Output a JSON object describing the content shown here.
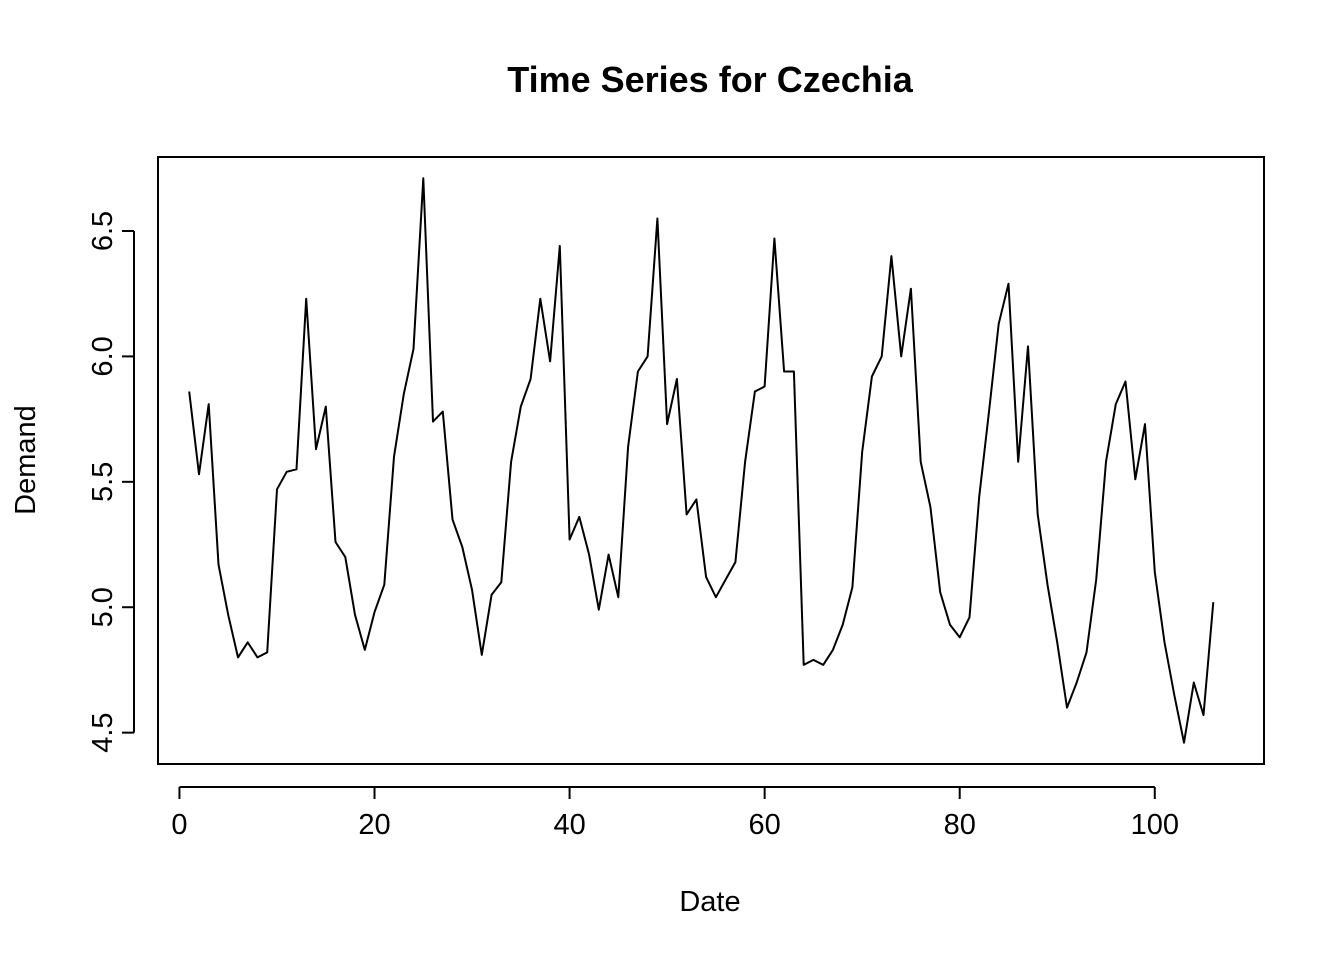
{
  "chart_data": {
    "type": "line",
    "title": "Time Series for Czechia",
    "xlabel": "Date",
    "ylabel": "Demand",
    "xlim": [
      -2.2,
      111.2
    ],
    "ylim": [
      4.375,
      6.795
    ],
    "xticks": [
      0,
      20,
      40,
      60,
      80,
      100
    ],
    "yticks": [
      4.5,
      5.0,
      5.5,
      6.0,
      6.5
    ],
    "xtick_labels": [
      "0",
      "20",
      "40",
      "60",
      "80",
      "100"
    ],
    "ytick_labels": [
      "4.5",
      "5.0",
      "5.5",
      "6.0",
      "6.5"
    ],
    "grid": false,
    "legend": "none",
    "line_color": "#000000",
    "series": [
      {
        "x": [
          1,
          2,
          3,
          4,
          5,
          6,
          7,
          8,
          9,
          10,
          11,
          12,
          13,
          14,
          15,
          16,
          17,
          18,
          19,
          20,
          21,
          22,
          23,
          24,
          25,
          26,
          27,
          28,
          29,
          30,
          31,
          32,
          33,
          34,
          35,
          36,
          37,
          38,
          39,
          40,
          41,
          42,
          43,
          44,
          45,
          46,
          47,
          48,
          49,
          50,
          51,
          52,
          53,
          54,
          55,
          56,
          57,
          58,
          59,
          60,
          61,
          62,
          63,
          64,
          65,
          66,
          67,
          68,
          69,
          70,
          71,
          72,
          73,
          74,
          75,
          76,
          77,
          78,
          79,
          80,
          81,
          82,
          83,
          84,
          85,
          86,
          87,
          88,
          89,
          90,
          91,
          92,
          93,
          94,
          95,
          96,
          97,
          98,
          99,
          100,
          101,
          102,
          103,
          104,
          105,
          106
        ],
        "values": [
          5.86,
          5.53,
          5.81,
          5.17,
          4.97,
          4.8,
          4.86,
          4.8,
          4.82,
          5.47,
          5.54,
          5.55,
          6.23,
          5.63,
          5.8,
          5.26,
          5.2,
          4.97,
          4.83,
          4.98,
          5.09,
          5.6,
          5.85,
          6.03,
          6.71,
          5.74,
          5.78,
          5.35,
          5.24,
          5.07,
          4.81,
          5.05,
          5.1,
          5.58,
          5.8,
          5.91,
          6.23,
          5.98,
          6.44,
          5.27,
          5.36,
          5.21,
          4.99,
          5.21,
          5.04,
          5.64,
          5.94,
          6.0,
          6.55,
          5.73,
          5.91,
          5.37,
          5.43,
          5.12,
          5.04,
          5.11,
          5.18,
          5.58,
          5.86,
          5.88,
          6.47,
          5.94,
          5.94,
          4.77,
          4.79,
          4.77,
          4.83,
          4.93,
          5.08,
          5.62,
          5.92,
          6.0,
          6.4,
          6.0,
          6.27,
          5.58,
          5.4,
          5.06,
          4.93,
          4.88,
          4.96,
          5.44,
          5.78,
          6.13,
          6.29,
          5.58,
          6.04,
          5.37,
          5.09,
          4.86,
          4.6,
          4.7,
          4.82,
          5.11,
          5.58,
          5.81,
          5.9,
          5.51,
          5.73,
          5.14,
          4.86,
          4.65,
          4.46,
          4.7,
          4.57,
          5.02
        ]
      }
    ]
  }
}
